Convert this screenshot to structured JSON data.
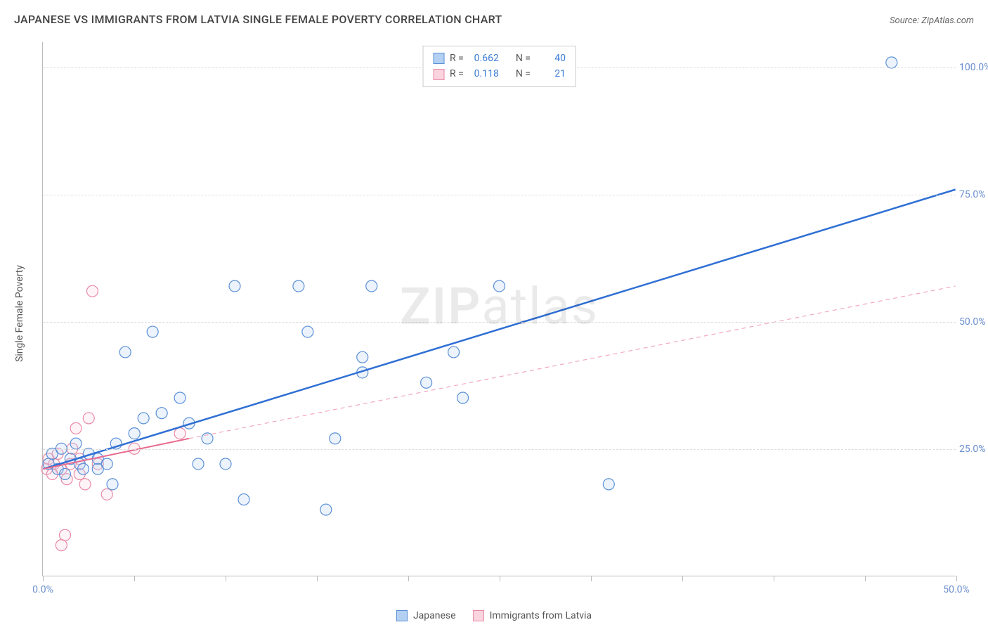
{
  "title": "JAPANESE VS IMMIGRANTS FROM LATVIA SINGLE FEMALE POVERTY CORRELATION CHART",
  "source": "Source: ZipAtlas.com",
  "y_axis_title": "Single Female Poverty",
  "watermark_bold": "ZIP",
  "watermark_rest": "atlas",
  "chart": {
    "type": "scatter",
    "background": "#ffffff",
    "grid_color": "#dddddd",
    "axis_color": "#bbbbbb",
    "tick_label_color": "#6b8fcf",
    "tick_fontsize": 14,
    "xlim": [
      0,
      50
    ],
    "ylim": [
      0,
      105
    ],
    "x_ticks": [
      0,
      5,
      10,
      15,
      20,
      25,
      30,
      35,
      40,
      45,
      50
    ],
    "x_tick_labels": {
      "0": "0.0%",
      "50": "50.0%"
    },
    "y_ticks": [
      25,
      50,
      75,
      100
    ],
    "y_tick_labels": {
      "25": "25.0%",
      "50": "50.0%",
      "75": "75.0%",
      "100": "100.0%"
    },
    "marker_radius": 8,
    "marker_stroke_width": 1.2,
    "marker_fill_opacity": 0.25,
    "series": [
      {
        "name": "Japanese",
        "color": "#6b9de8",
        "fill": "#b3d0f2",
        "stroke": "#5a8fd6",
        "trend": {
          "x1": 0,
          "y1": 21,
          "x2": 50,
          "y2": 76,
          "width": 2.5,
          "dash": "",
          "color": "#2f6fd4"
        },
        "stats": {
          "R": "0.662",
          "N": "40"
        },
        "points": [
          [
            0.3,
            22
          ],
          [
            0.5,
            24
          ],
          [
            0.8,
            21
          ],
          [
            1.0,
            25
          ],
          [
            1.2,
            20
          ],
          [
            1.5,
            23
          ],
          [
            1.8,
            26
          ],
          [
            2.0,
            22
          ],
          [
            2.2,
            21
          ],
          [
            2.5,
            24
          ],
          [
            3.0,
            23
          ],
          [
            3.0,
            21
          ],
          [
            3.5,
            22
          ],
          [
            3.8,
            18
          ],
          [
            4.0,
            26
          ],
          [
            4.5,
            44
          ],
          [
            5.0,
            28
          ],
          [
            5.5,
            31
          ],
          [
            6.0,
            48
          ],
          [
            6.5,
            32
          ],
          [
            7.5,
            35
          ],
          [
            8.0,
            30
          ],
          [
            8.5,
            22
          ],
          [
            9.0,
            27
          ],
          [
            10.0,
            22
          ],
          [
            10.5,
            57
          ],
          [
            11.0,
            15
          ],
          [
            14.0,
            57
          ],
          [
            14.5,
            48
          ],
          [
            16.0,
            27
          ],
          [
            15.5,
            13
          ],
          [
            17.5,
            40
          ],
          [
            18.0,
            57
          ],
          [
            17.5,
            43
          ],
          [
            21.0,
            38
          ],
          [
            22.5,
            44
          ],
          [
            23.0,
            35
          ],
          [
            31.0,
            18
          ],
          [
            25.0,
            57
          ],
          [
            46.5,
            101
          ]
        ]
      },
      {
        "name": "Immigrants from Latvia",
        "color": "#f2a8bc",
        "fill": "#fad4de",
        "stroke": "#e88aa6",
        "trend_solid": {
          "x1": 0,
          "y1": 21,
          "x2": 8,
          "y2": 27,
          "width": 2,
          "color": "#e86a8f"
        },
        "trend_dash": {
          "x1": 8,
          "y1": 27,
          "x2": 50,
          "y2": 57,
          "width": 1.2,
          "dash": "6,5",
          "color": "#f2a8bc"
        },
        "stats": {
          "R": "0.118",
          "N": "21"
        },
        "points": [
          [
            0.2,
            21
          ],
          [
            0.3,
            23
          ],
          [
            0.5,
            20
          ],
          [
            0.6,
            22
          ],
          [
            0.8,
            24
          ],
          [
            1.0,
            21
          ],
          [
            1.0,
            6
          ],
          [
            1.2,
            8
          ],
          [
            1.3,
            19
          ],
          [
            1.5,
            22
          ],
          [
            1.6,
            25
          ],
          [
            1.8,
            29
          ],
          [
            2.0,
            20
          ],
          [
            2.0,
            23
          ],
          [
            2.3,
            18
          ],
          [
            2.5,
            31
          ],
          [
            2.7,
            56
          ],
          [
            3.0,
            22
          ],
          [
            3.5,
            16
          ],
          [
            5.0,
            25
          ],
          [
            7.5,
            28
          ]
        ]
      }
    ]
  },
  "stat_legend": {
    "R_label": "R =",
    "N_label": "N ="
  },
  "series_legend": {
    "items": [
      "Japanese",
      "Immigrants from Latvia"
    ]
  }
}
